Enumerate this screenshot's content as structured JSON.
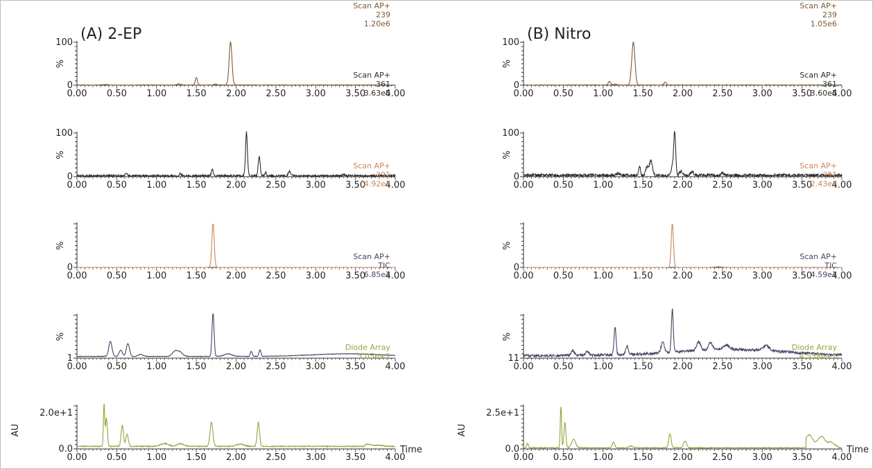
{
  "chart_data": [
    {
      "panel": "A",
      "title": "(A) 2-EP",
      "type": "line",
      "xlim": [
        0,
        4
      ],
      "x_ticks": [
        "0.00",
        "0.50",
        "1.00",
        "1.50",
        "2.00",
        "2.50",
        "3.00",
        "3.50",
        "4.00"
      ],
      "traces": [
        {
          "info": [
            "Scan AP+",
            "239",
            "1.20e6"
          ],
          "color": "#7d5a32",
          "ylabel": "%",
          "yticks": [
            "100",
            "0"
          ],
          "ylim": [
            0,
            100
          ],
          "xlabel": "",
          "peaks": [
            [
              1.93,
              100,
              0.018
            ],
            [
              1.5,
              18,
              0.013
            ],
            [
              1.28,
              3,
              0.02
            ],
            [
              1.74,
              2,
              0.02
            ],
            [
              0.35,
              1,
              0.03
            ]
          ],
          "baseline": 0.4,
          "noise": 0.6
        },
        {
          "info": [
            "Scan AP+",
            "361",
            "3.63e5"
          ],
          "color": "#2b2b2b",
          "ylabel": "%",
          "yticks": [
            "100",
            "0"
          ],
          "ylim": [
            0,
            100
          ],
          "xlabel": "",
          "peaks": [
            [
              2.13,
              100,
              0.012
            ],
            [
              2.29,
              45,
              0.012
            ],
            [
              1.7,
              15,
              0.012
            ],
            [
              2.37,
              8,
              0.012
            ],
            [
              2.67,
              10,
              0.015
            ],
            [
              1.3,
              6,
              0.01
            ],
            [
              0.62,
              5,
              0.015
            ],
            [
              3.35,
              4,
              0.01
            ]
          ],
          "baseline": 2,
          "noise": 2.2
        },
        {
          "info": [
            "Scan AP+",
            "391",
            "4.92e7"
          ],
          "color": "#c8875a",
          "ylabel": "%",
          "yticks": [
            "0"
          ],
          "ylim": [
            0,
            100
          ],
          "xlabel": "",
          "peaks": [
            [
              1.71,
              100,
              0.015
            ]
          ],
          "baseline": 0,
          "noise": 0.3
        },
        {
          "info": [
            "Scan AP+",
            "TIC",
            "6.85e7"
          ],
          "color": "#4a3f63",
          "ylabel": "%",
          "yticks": [
            "1"
          ],
          "ylim": [
            0,
            100
          ],
          "xlabel": "",
          "peaks": [
            [
              1.71,
              100,
              0.013
            ],
            [
              0.42,
              35,
              0.02
            ],
            [
              0.64,
              30,
              0.02
            ],
            [
              0.55,
              15,
              0.02
            ],
            [
              1.28,
              12,
              0.04
            ],
            [
              1.22,
              8,
              0.03
            ],
            [
              2.19,
              12,
              0.012
            ],
            [
              2.3,
              15,
              0.012
            ],
            [
              0.8,
              5,
              0.03
            ],
            [
              1.9,
              6,
              0.05
            ]
          ],
          "baseline": 4,
          "noise": 0.6,
          "hump": [
            3.4,
            6,
            0.45
          ]
        },
        {
          "info": [
            "Diode Array",
            "3.05e+1"
          ],
          "color": "#9aa03c",
          "ylabel": "AU",
          "yticks": [
            "2.0e+1",
            "0.0"
          ],
          "ylim": [
            0,
            30.5
          ],
          "xlabel": "Time",
          "peaks": [
            [
              0.34,
              30,
              0.008
            ],
            [
              0.37,
              20,
              0.012
            ],
            [
              0.57,
              15,
              0.015
            ],
            [
              0.63,
              9,
              0.015
            ],
            [
              1.69,
              17,
              0.018
            ],
            [
              2.28,
              17,
              0.015
            ],
            [
              1.1,
              2,
              0.05
            ],
            [
              1.3,
              2,
              0.04
            ],
            [
              2.05,
              1.5,
              0.05
            ]
          ],
          "baseline": 1.8,
          "noise": 0.35,
          "step": [
            3.62,
            3.8,
            1.5
          ]
        }
      ]
    },
    {
      "panel": "B",
      "title": "(B) Nitro",
      "type": "line",
      "xlim": [
        0,
        4
      ],
      "x_ticks": [
        "0.00",
        "0.50",
        "1.00",
        "1.50",
        "2.00",
        "2.50",
        "3.00",
        "3.50",
        "4.00"
      ],
      "traces": [
        {
          "info": [
            "Scan AP+",
            "239",
            "1.05e6"
          ],
          "color": "#7d5a32",
          "ylabel": "%",
          "yticks": [
            "100",
            "0"
          ],
          "ylim": [
            0,
            100
          ],
          "xlabel": "",
          "peaks": [
            [
              1.38,
              100,
              0.02
            ],
            [
              1.08,
              8,
              0.015
            ],
            [
              1.78,
              7,
              0.015
            ],
            [
              1.15,
              2,
              0.02
            ]
          ],
          "baseline": 0.4,
          "noise": 0.6
        },
        {
          "info": [
            "Scan AP+",
            "361",
            "3.60e5"
          ],
          "color": "#2b2b2b",
          "ylabel": "%",
          "yticks": [
            "100",
            "0"
          ],
          "ylim": [
            0,
            100
          ],
          "xlabel": "",
          "peaks": [
            [
              1.9,
              100,
              0.012
            ],
            [
              1.6,
              35,
              0.02
            ],
            [
              1.55,
              18,
              0.015
            ],
            [
              1.46,
              20,
              0.012
            ],
            [
              1.87,
              20,
              0.015
            ],
            [
              1.98,
              10,
              0.02
            ],
            [
              2.12,
              8,
              0.02
            ],
            [
              2.5,
              6,
              0.02
            ],
            [
              1.2,
              5,
              0.02
            ]
          ],
          "baseline": 3,
          "noise": 3.5
        },
        {
          "info": [
            "Scan AP+",
            "391",
            "2.43e7"
          ],
          "color": "#c8875a",
          "ylabel": "%",
          "yticks": [
            "0"
          ],
          "ylim": [
            0,
            100
          ],
          "xlabel": "",
          "peaks": [
            [
              1.87,
              100,
              0.014
            ],
            [
              2.45,
              1.5,
              0.05
            ]
          ],
          "baseline": 0,
          "noise": 0.3
        },
        {
          "info": [
            "Scan AP+",
            "TIC",
            "4.59e7"
          ],
          "color": "#4a3f63",
          "ylabel": "%",
          "yticks": [
            "11"
          ],
          "ylim": [
            0,
            100
          ],
          "xlabel": "",
          "peaks": [
            [
              1.87,
              100,
              0.012
            ],
            [
              1.15,
              65,
              0.013
            ],
            [
              1.3,
              20,
              0.015
            ],
            [
              0.62,
              12,
              0.02
            ],
            [
              0.8,
              10,
              0.02
            ],
            [
              1.75,
              25,
              0.02
            ],
            [
              2.2,
              20,
              0.025
            ],
            [
              2.35,
              18,
              0.025
            ],
            [
              2.55,
              10,
              0.04
            ],
            [
              3.05,
              12,
              0.04
            ]
          ],
          "baseline": 6,
          "noise": 3,
          "hump": [
            2.6,
            14,
            0.7
          ]
        },
        {
          "info": [
            "Diode Array",
            "4.538e+1"
          ],
          "color": "#9aa03c",
          "ylabel": "AU",
          "yticks": [
            "2.5e+1",
            "0.0"
          ],
          "ylim": [
            0,
            45.38
          ],
          "xlabel": "Time",
          "peaks": [
            [
              0.47,
              44,
              0.008
            ],
            [
              0.52,
              27,
              0.012
            ],
            [
              0.63,
              9,
              0.025
            ],
            [
              1.13,
              6,
              0.015
            ],
            [
              1.84,
              15,
              0.015
            ],
            [
              2.03,
              7,
              0.02
            ],
            [
              0.05,
              5,
              0.01
            ],
            [
              1.35,
              2,
              0.02
            ]
          ],
          "baseline": 1.2,
          "noise": 0.4,
          "step": [
            3.55,
            3.85,
            14
          ]
        }
      ]
    }
  ]
}
